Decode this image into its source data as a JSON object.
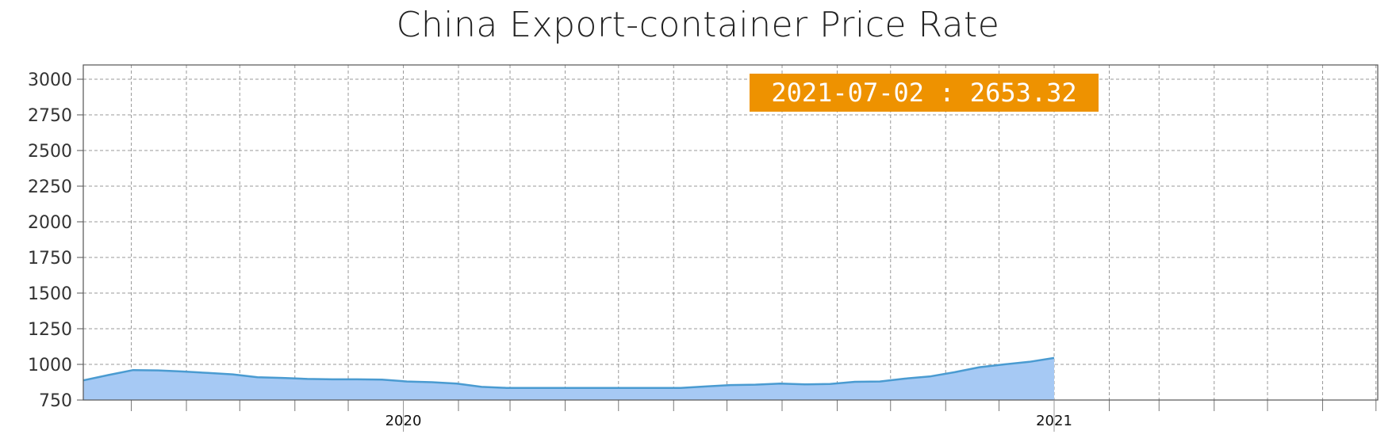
{
  "chart_data": {
    "type": "area",
    "title": "China Export-container Price Rate",
    "xlabel": "",
    "ylabel": "",
    "ylim": [
      750,
      3100
    ],
    "yticks": [
      750,
      1000,
      1250,
      1500,
      1750,
      2000,
      2250,
      2500,
      2750,
      3000
    ],
    "xlim": [
      "2019-07-05",
      "2021-07-02"
    ],
    "xtick_labels": [
      {
        "date": "2020-01-01",
        "label": "2020"
      },
      {
        "date": "2021-01-01",
        "label": "2021"
      }
    ],
    "grid": true,
    "colors": {
      "fill": "#a6c9f4",
      "line": "#4a9bd1",
      "tooltip_bg": "#ee9200",
      "grid": "#999999"
    },
    "tooltip": {
      "date": "2021-07-02",
      "value": "2653.32",
      "separator": " : "
    },
    "series": [
      {
        "values": [
          [
            "2019-07-05",
            888
          ],
          [
            "2019-07-19",
            925
          ],
          [
            "2019-08-02",
            960
          ],
          [
            "2019-08-16",
            958
          ],
          [
            "2019-08-30",
            950
          ],
          [
            "2019-09-13",
            940
          ],
          [
            "2019-09-27",
            930
          ],
          [
            "2019-10-11",
            910
          ],
          [
            "2019-10-25",
            905
          ],
          [
            "2019-11-08",
            898
          ],
          [
            "2019-11-22",
            895
          ],
          [
            "2019-12-06",
            895
          ],
          [
            "2019-12-20",
            893
          ],
          [
            "2020-01-03",
            880
          ],
          [
            "2020-01-17",
            875
          ],
          [
            "2020-01-31",
            865
          ],
          [
            "2020-02-14",
            842
          ],
          [
            "2020-02-28",
            835
          ],
          [
            "2020-03-13",
            835
          ],
          [
            "2020-03-27",
            835
          ],
          [
            "2020-04-10",
            835
          ],
          [
            "2020-04-24",
            835
          ],
          [
            "2020-05-08",
            835
          ],
          [
            "2020-05-22",
            835
          ],
          [
            "2020-06-05",
            835
          ],
          [
            "2020-06-19",
            845
          ],
          [
            "2020-07-03",
            855
          ],
          [
            "2020-07-17",
            858
          ],
          [
            "2020-07-31",
            865
          ],
          [
            "2020-08-14",
            860
          ],
          [
            "2020-08-28",
            862
          ],
          [
            "2020-09-11",
            878
          ],
          [
            "2020-09-25",
            880
          ],
          [
            "2020-10-09",
            900
          ],
          [
            "2020-10-23",
            915
          ],
          [
            "2020-11-06",
            945
          ],
          [
            "2020-11-20",
            980
          ],
          [
            "2020-12-04",
            1000
          ],
          [
            "2020-12-18",
            1018
          ],
          [
            "2021-01-01",
            1045
          ]
        ]
      }
    ]
  }
}
